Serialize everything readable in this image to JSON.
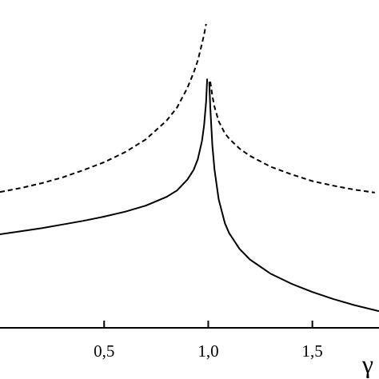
{
  "chart_data": {
    "type": "line",
    "xlabel": "γ",
    "ylabel": "",
    "xlim": [
      0.0,
      1.82
    ],
    "ylim": [
      0,
      1
    ],
    "x_ticks": [
      0.5,
      1.0,
      1.5
    ],
    "x_tick_labels": [
      "0,5",
      "1,0",
      "1,5"
    ],
    "grid": false,
    "legend": "none",
    "series": [
      {
        "style": "solid",
        "color": "#000000",
        "segments": [
          {
            "x": [
              0.0,
              0.1,
              0.2,
              0.3,
              0.4,
              0.5,
              0.6,
              0.7,
              0.8,
              0.85,
              0.9,
              0.93,
              0.95,
              0.97,
              0.98,
              0.99,
              0.995
            ],
            "y": [
              0.308,
              0.318,
              0.328,
              0.34,
              0.352,
              0.366,
              0.382,
              0.402,
              0.431,
              0.452,
              0.488,
              0.52,
              0.555,
              0.615,
              0.665,
              0.745,
              0.82
            ]
          },
          {
            "x": [
              1.005,
              1.01,
              1.02,
              1.03,
              1.05,
              1.08,
              1.1,
              1.15,
              1.2,
              1.3,
              1.4,
              1.5,
              1.6,
              1.7,
              1.82
            ],
            "y": [
              0.81,
              0.725,
              0.6,
              0.52,
              0.423,
              0.344,
              0.312,
              0.26,
              0.225,
              0.178,
              0.145,
              0.118,
              0.095,
              0.075,
              0.055
            ]
          }
        ]
      },
      {
        "style": "dashed",
        "color": "#000000",
        "segments": [
          {
            "x": [
              0.0,
              0.1,
              0.2,
              0.3,
              0.4,
              0.5,
              0.6,
              0.7,
              0.8,
              0.85,
              0.9,
              0.93,
              0.95,
              0.97,
              0.98,
              0.99
            ],
            "y": [
              0.447,
              0.46,
              0.476,
              0.495,
              0.519,
              0.545,
              0.578,
              0.62,
              0.682,
              0.725,
              0.79,
              0.84,
              0.88,
              0.935,
              0.965,
              1.0
            ]
          },
          {
            "x": [
              1.01,
              1.02,
              1.03,
              1.05,
              1.08,
              1.1,
              1.15,
              1.2,
              1.3,
              1.4,
              1.5,
              1.6,
              1.7,
              1.8
            ],
            "y": [
              0.81,
              0.763,
              0.727,
              0.68,
              0.64,
              0.623,
              0.59,
              0.566,
              0.53,
              0.505,
              0.483,
              0.468,
              0.455,
              0.445
            ]
          }
        ]
      }
    ]
  }
}
